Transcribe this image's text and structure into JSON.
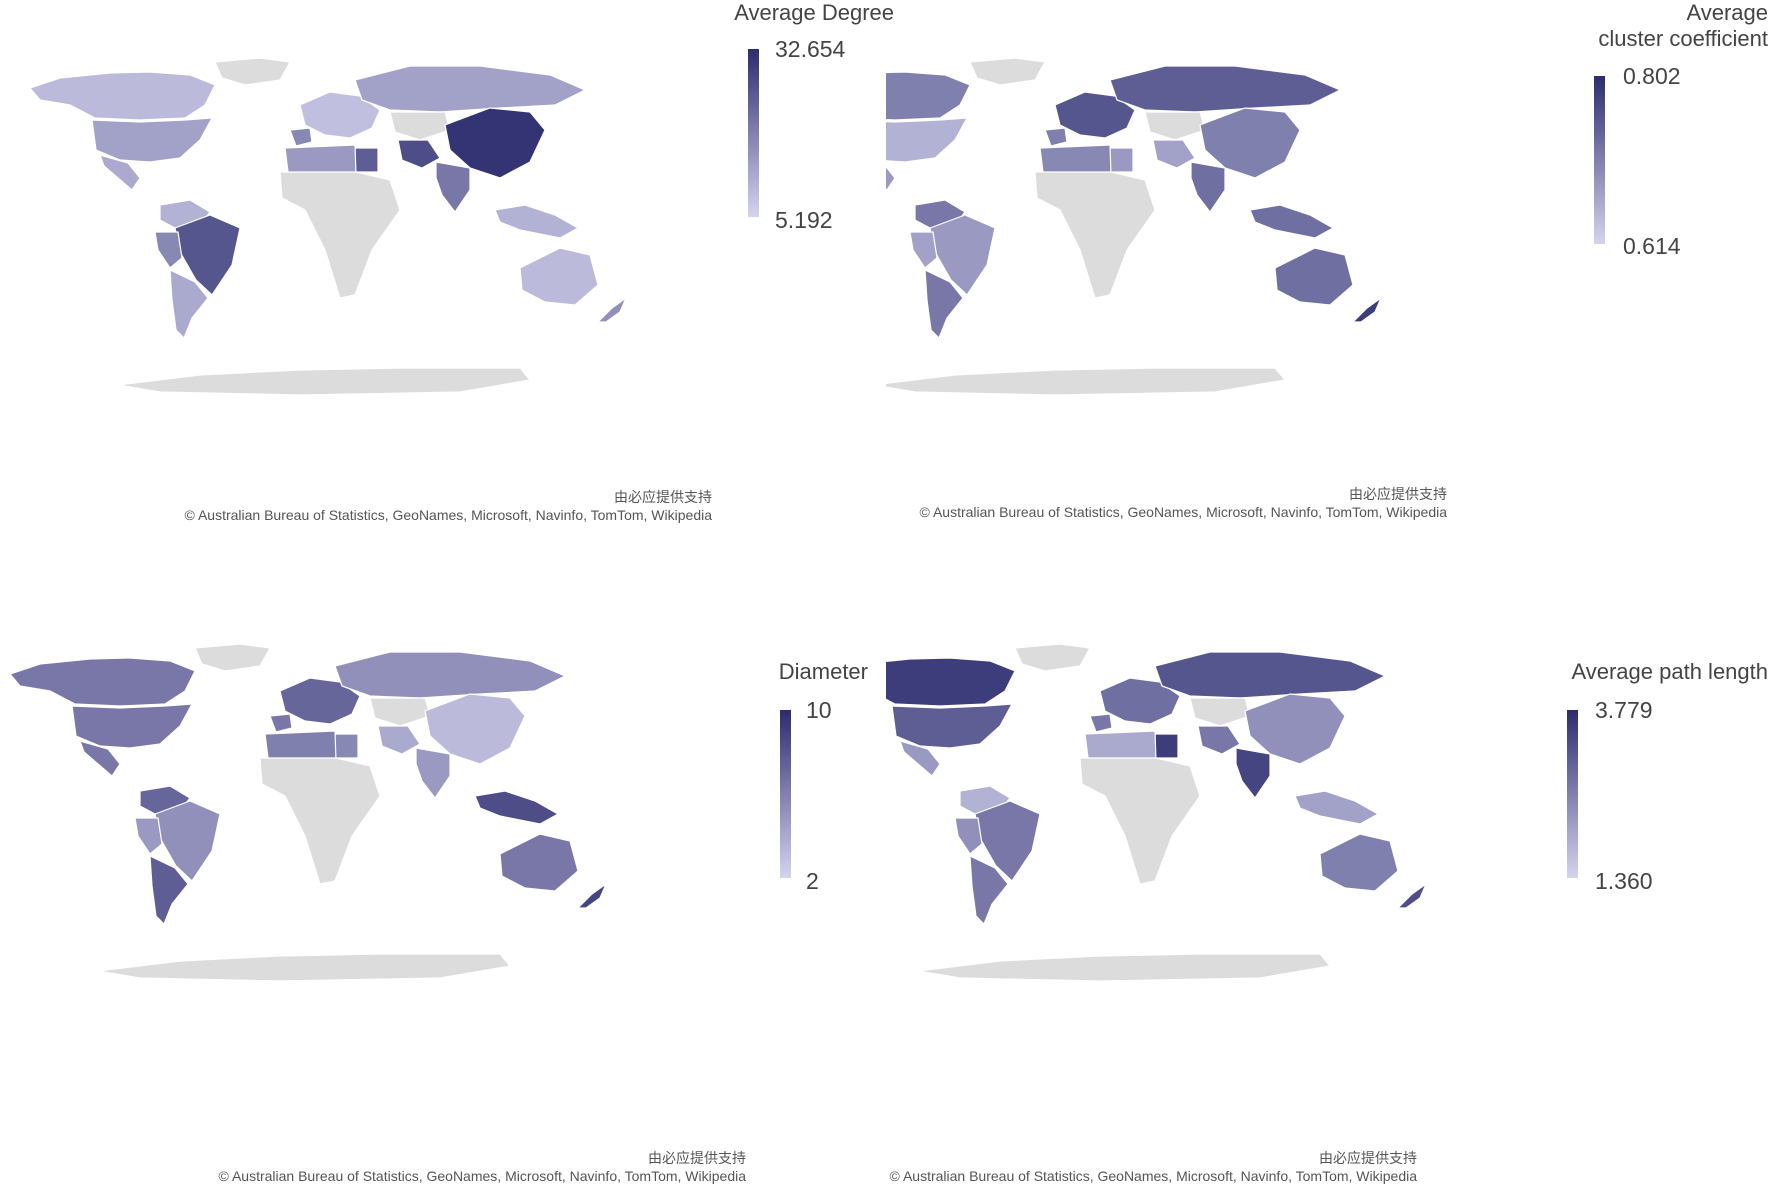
{
  "panels": [
    {
      "legend_title": "Average Degree",
      "legend_max": "32.654",
      "legend_min": "5.192",
      "credit_cn": "由必应提供支持",
      "credit": "© Australian Bureau of Statistics, GeoNames, Microsoft, Navinfo, TomTom, Wikipedia"
    },
    {
      "legend_title": "Average\ncluster coefficient",
      "legend_max": "0.802",
      "legend_min": "0.614",
      "credit_cn": "由必应提供支持",
      "credit": "© Australian Bureau of Statistics, GeoNames, Microsoft, Navinfo, TomTom, Wikipedia"
    },
    {
      "legend_title": "Diameter",
      "legend_max": "10",
      "legend_min": "2",
      "credit_cn": "由必应提供支持",
      "credit": "© Australian Bureau of Statistics, GeoNames, Microsoft, Navinfo, TomTom, Wikipedia"
    },
    {
      "legend_title": "Average path length",
      "legend_max": "3.779",
      "legend_min": "1.360",
      "credit_cn": "由必应提供支持",
      "credit": "© Australian Bureau of Statistics, GeoNames, Microsoft, Navinfo, TomTom, Wikipedia"
    }
  ],
  "colors": {
    "no_data": "#dcdcdc",
    "scale_low": "#d4d3ee",
    "scale_high": "#2c2c6e",
    "background": "#ffffff"
  },
  "chart_data": [
    {
      "type": "choropleth",
      "metric": "Average Degree",
      "range": [
        5.192,
        32.654
      ],
      "levels": {
        "north_america": 0.15,
        "usa": 0.3,
        "mexico": 0.25,
        "greenland": null,
        "south_america_north": 0.2,
        "brazil": 0.75,
        "peru": 0.45,
        "chile_argentina": 0.25,
        "europe": 0.12,
        "iberia": 0.45,
        "russia": 0.3,
        "central_asia": null,
        "china": 0.95,
        "iran": 0.8,
        "india": 0.55,
        "egypt": 0.7,
        "north_africa": 0.35,
        "africa": null,
        "indonesia": 0.2,
        "australia": 0.15,
        "new_zealand": 0.4,
        "antarctica": null
      }
    },
    {
      "type": "choropleth",
      "metric": "Average cluster coefficient",
      "range": [
        0.614,
        0.802
      ],
      "levels": {
        "north_america": 0.5,
        "usa": 0.2,
        "mexico": 0.35,
        "greenland": null,
        "south_america_north": 0.55,
        "brazil": 0.35,
        "peru": 0.3,
        "chile_argentina": 0.55,
        "europe": 0.75,
        "iberia": 0.5,
        "russia": 0.7,
        "central_asia": null,
        "china": 0.5,
        "iran": 0.3,
        "india": 0.6,
        "egypt": 0.35,
        "north_africa": 0.45,
        "africa": null,
        "indonesia": 0.6,
        "australia": 0.6,
        "new_zealand": 0.9,
        "antarctica": null
      }
    },
    {
      "type": "choropleth",
      "metric": "Diameter",
      "range": [
        2,
        10
      ],
      "levels": {
        "north_america": 0.55,
        "usa": 0.55,
        "mexico": 0.55,
        "greenland": null,
        "south_america_north": 0.65,
        "brazil": 0.4,
        "peru": 0.35,
        "chile_argentina": 0.7,
        "europe": 0.65,
        "iberia": 0.55,
        "russia": 0.4,
        "central_asia": null,
        "china": 0.15,
        "iran": 0.25,
        "india": 0.35,
        "egypt": 0.45,
        "north_africa": 0.5,
        "africa": null,
        "indonesia": 0.8,
        "australia": 0.55,
        "new_zealand": 0.85,
        "antarctica": null
      }
    },
    {
      "type": "choropleth",
      "metric": "Average path length",
      "range": [
        1.36,
        3.779
      ],
      "levels": {
        "north_america": 0.9,
        "usa": 0.7,
        "mexico": 0.35,
        "greenland": null,
        "south_america_north": 0.2,
        "brazil": 0.55,
        "peru": 0.4,
        "chile_argentina": 0.55,
        "europe": 0.6,
        "iberia": 0.55,
        "russia": 0.75,
        "central_asia": null,
        "china": 0.4,
        "iran": 0.55,
        "india": 0.85,
        "egypt": 0.9,
        "north_africa": 0.25,
        "africa": null,
        "indonesia": 0.3,
        "australia": 0.5,
        "new_zealand": 0.8,
        "antarctica": null
      }
    }
  ]
}
